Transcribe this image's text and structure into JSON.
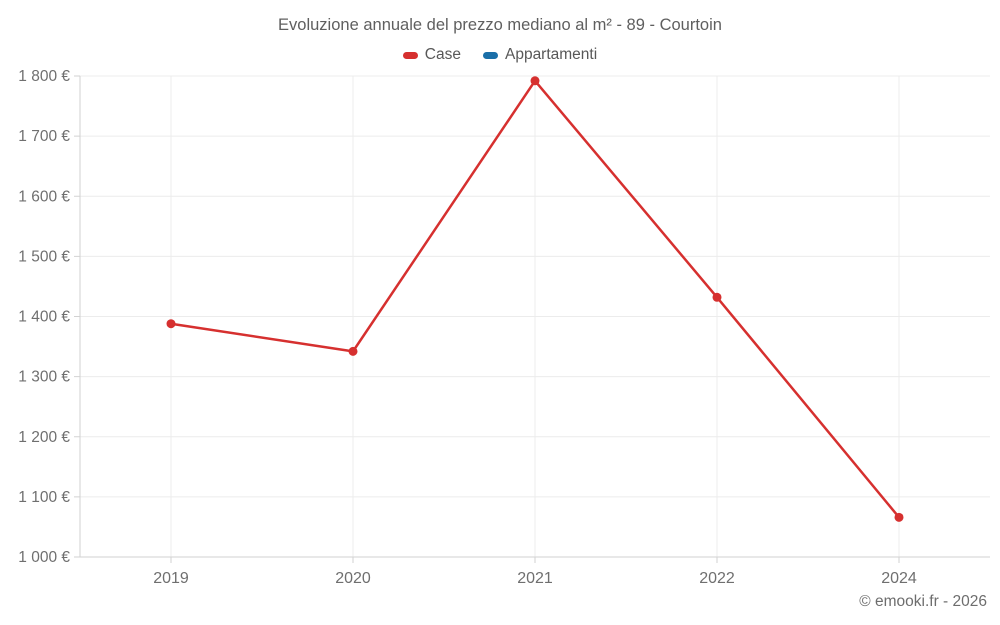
{
  "title": "Evoluzione annuale del prezzo mediano al m² - 89 - Courtoin",
  "footer": "© emooki.fr - 2026",
  "colors": {
    "case_red": "#d6302f",
    "appartamenti_blue": "#1a6fa8",
    "grid": "#ececec",
    "axis": "#d2d2d2",
    "tick_text": "#6f6f6f"
  },
  "chart_data": {
    "type": "line",
    "categories": [
      "2019",
      "2020",
      "2021",
      "2022",
      "2024"
    ],
    "series": [
      {
        "name": "Case",
        "color": "#d6302f",
        "values": [
          1388,
          1342,
          1792,
          1432,
          1066
        ]
      },
      {
        "name": "Appartamenti",
        "color": "#1a6fa8",
        "values": []
      }
    ],
    "title": "Evoluzione annuale del prezzo mediano al m² - 89 - Courtoin",
    "xlabel": "",
    "ylabel": "",
    "ylim": [
      1000,
      1800
    ],
    "y_step": 100,
    "y_tick_labels": [
      "1 000 €",
      "1 100 €",
      "1 200 €",
      "1 300 €",
      "1 400 €",
      "1 500 €",
      "1 600 €",
      "1 700 €",
      "1 800 €"
    ],
    "grid": true,
    "legend_position": "top",
    "marker": "circle"
  }
}
